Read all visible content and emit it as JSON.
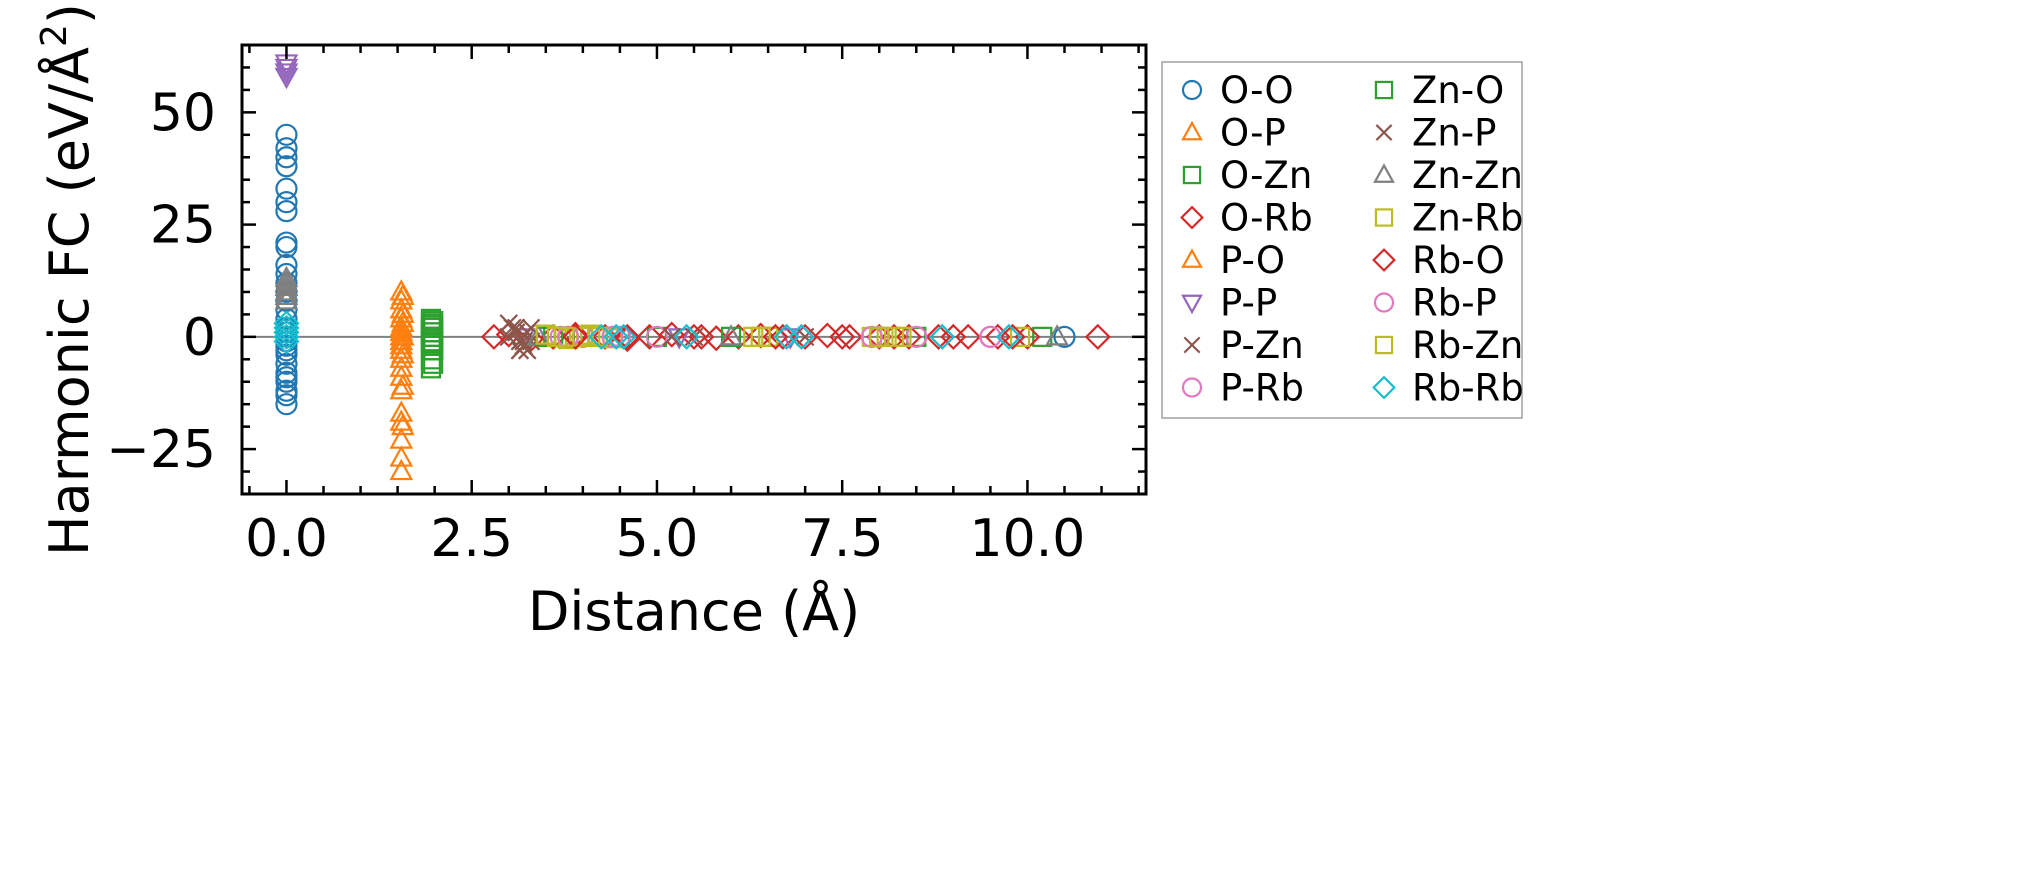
{
  "chart_data": {
    "type": "scatter",
    "title": "",
    "xlabel": "Distance (Å)",
    "ylabel_main": "Harmonic FC (eV/Å",
    "ylabel_sup": "2",
    "ylabel_close": ")",
    "xlim": [
      -0.6,
      11.6
    ],
    "ylim": [
      -35,
      65
    ],
    "xticks": [
      0.0,
      2.5,
      5.0,
      7.5,
      10.0
    ],
    "xtick_labels": [
      "0.0",
      "2.5",
      "5.0",
      "7.5",
      "10.0"
    ],
    "yticks": [
      -25,
      0,
      25,
      50
    ],
    "ytick_labels": [
      "−25",
      "0",
      "25",
      "50"
    ],
    "zero_line": 0,
    "legend_position": "outside-right",
    "legend_columns": 2,
    "series": [
      {
        "name": "O-O",
        "color": "#1f77b4",
        "marker": "circle",
        "filled": false,
        "x": [
          0.0,
          0.0,
          0.0,
          0.0,
          0.0,
          0.0,
          0.0,
          0.0,
          0.0,
          0.0,
          0.0,
          0.0,
          0.0,
          0.0,
          0.0,
          0.0,
          0.0,
          0.0,
          0.0,
          0.0,
          0.0,
          0.0,
          0.0,
          0.0,
          0.0,
          0.0,
          0.0,
          0.0,
          0.0,
          0.0,
          10.5
        ],
        "y": [
          45,
          42,
          40,
          38,
          33,
          30,
          28,
          21,
          20,
          16,
          14,
          12,
          10,
          8,
          6,
          4,
          2,
          1,
          0,
          -1,
          -2,
          -3,
          -4,
          -6,
          -8,
          -9,
          -10,
          -12,
          -13,
          -15,
          0
        ]
      },
      {
        "name": "O-P",
        "color": "#ff7f0e",
        "marker": "triangle-up",
        "filled": false,
        "x": [
          1.55,
          1.55,
          1.55,
          1.55,
          1.55,
          1.55,
          1.55,
          1.55,
          1.55,
          1.55,
          1.55,
          1.55,
          1.55,
          1.55,
          1.55,
          1.55,
          1.55,
          1.55,
          1.55
        ],
        "y": [
          10,
          8,
          6,
          4,
          2,
          1,
          0,
          -1,
          -2,
          -3,
          -5,
          -7,
          -9,
          -12,
          -17,
          -19,
          -23,
          -27,
          -30
        ]
      },
      {
        "name": "O-Zn",
        "color": "#2ca02c",
        "marker": "square",
        "filled": false,
        "x": [
          1.95,
          1.95,
          1.95,
          1.95,
          1.95,
          1.95,
          1.95,
          1.95,
          1.95,
          1.95,
          3.5,
          4.0,
          4.5,
          5.0,
          6.5,
          8.5,
          10.2
        ],
        "y": [
          4,
          3,
          2,
          1,
          0,
          -1,
          -2,
          -3,
          -5,
          -7,
          0,
          0,
          0,
          0,
          0,
          0,
          0
        ]
      },
      {
        "name": "O-Rb",
        "color": "#d62728",
        "marker": "diamond",
        "filled": false,
        "x": [
          2.8,
          3.0,
          3.3,
          3.6,
          3.9,
          4.3,
          4.6,
          4.9,
          5.2,
          5.5,
          5.8,
          6.1,
          6.4,
          6.7,
          7.0,
          7.3,
          7.6,
          8.0,
          8.4,
          8.8,
          9.2,
          9.6,
          10.0
        ],
        "y": [
          0,
          0.5,
          -0.5,
          0,
          0.5,
          0,
          -0.5,
          0,
          0.5,
          0,
          -0.3,
          0,
          0.3,
          0,
          0,
          0.3,
          0,
          0,
          0,
          0,
          0,
          0,
          0
        ]
      },
      {
        "name": "P-O",
        "color": "#ff7f0e",
        "marker": "triangle-up",
        "filled": false,
        "x": [
          1.57,
          1.57,
          1.57,
          1.57,
          1.57,
          1.57,
          1.57
        ],
        "y": [
          9,
          5,
          3,
          0,
          -4,
          -11,
          -20
        ]
      },
      {
        "name": "P-P",
        "color": "#9467bd",
        "marker": "triangle-down",
        "filled": false,
        "x": [
          0.0,
          0.0,
          0.0,
          0.0,
          3.2,
          5.3,
          6.8
        ],
        "y": [
          61,
          60,
          59,
          58,
          0,
          0,
          0
        ]
      },
      {
        "name": "P-Zn",
        "color": "#8c564b",
        "marker": "x",
        "filled": false,
        "x": [
          3.0,
          3.05,
          3.1,
          3.15,
          3.2,
          3.25,
          3.3,
          3.0,
          3.1,
          3.2,
          3.3,
          5.5,
          7.0
        ],
        "y": [
          3,
          2,
          1,
          -1,
          -2,
          -3,
          -1,
          0,
          1,
          -2,
          2,
          0,
          0
        ]
      },
      {
        "name": "P-Rb",
        "color": "#e377c2",
        "marker": "circle",
        "filled": false,
        "x": [
          3.7,
          4.0,
          4.5,
          5.0,
          8.0,
          8.5,
          9.5
        ],
        "y": [
          0,
          0,
          0,
          0,
          0,
          0,
          0
        ]
      },
      {
        "name": "Zn-O",
        "color": "#2ca02c",
        "marker": "square",
        "filled": false,
        "x": [
          1.98,
          1.98,
          1.98,
          1.98,
          1.98,
          1.98,
          1.98,
          3.6,
          4.2,
          6.0
        ],
        "y": [
          3.5,
          2.5,
          1,
          0,
          -1.5,
          -3,
          -6,
          0,
          0,
          0
        ]
      },
      {
        "name": "Zn-P",
        "color": "#8c564b",
        "marker": "x",
        "filled": false,
        "x": [
          3.1,
          3.2,
          3.25,
          3.15,
          5.2
        ],
        "y": [
          2,
          -1,
          1,
          -3,
          0
        ]
      },
      {
        "name": "Zn-Zn",
        "color": "#7f7f7f",
        "marker": "triangle-up",
        "filled": false,
        "x": [
          0.0,
          0.0,
          0.0,
          0.0,
          0.0,
          0.0,
          3.4,
          6.0,
          10.4
        ],
        "y": [
          13,
          12,
          11,
          10,
          9,
          8,
          0,
          0,
          0
        ]
      },
      {
        "name": "Zn-Rb",
        "color": "#bcbd22",
        "marker": "square",
        "filled": false,
        "x": [
          3.5,
          3.65,
          3.8,
          3.95,
          4.1,
          4.25,
          4.4,
          6.3,
          6.5,
          7.9,
          8.1,
          8.3,
          9.9
        ],
        "y": [
          0.5,
          0,
          -0.5,
          0,
          0.5,
          0,
          -0.3,
          0,
          0,
          0,
          0,
          0,
          0
        ]
      },
      {
        "name": "Rb-O",
        "color": "#d62728",
        "marker": "diamond",
        "filled": false,
        "x": [
          3.9,
          4.6,
          5.6,
          6.6,
          7.5,
          8.2,
          9.0,
          9.8,
          10.95
        ],
        "y": [
          0,
          0,
          0,
          0,
          0,
          0,
          0,
          0,
          0
        ]
      },
      {
        "name": "Rb-P",
        "color": "#e377c2",
        "marker": "circle",
        "filled": false,
        "x": [
          3.8,
          4.4,
          7.9,
          9.5
        ],
        "y": [
          0,
          0,
          0,
          0
        ]
      },
      {
        "name": "Rb-Zn",
        "color": "#bcbd22",
        "marker": "square",
        "filled": false,
        "x": [
          3.75,
          4.2,
          6.4,
          8.0,
          8.2
        ],
        "y": [
          0,
          0,
          0,
          0,
          0
        ]
      },
      {
        "name": "Rb-Rb",
        "color": "#17becf",
        "marker": "diamond",
        "filled": false,
        "x": [
          0.0,
          0.0,
          0.0,
          0.0,
          0.0,
          4.25,
          4.45,
          4.55,
          5.4,
          6.75,
          6.95,
          8.85,
          9.75
        ],
        "y": [
          3,
          2,
          1,
          0,
          -1,
          0,
          0,
          0,
          0,
          0,
          0,
          0,
          0
        ]
      }
    ]
  }
}
